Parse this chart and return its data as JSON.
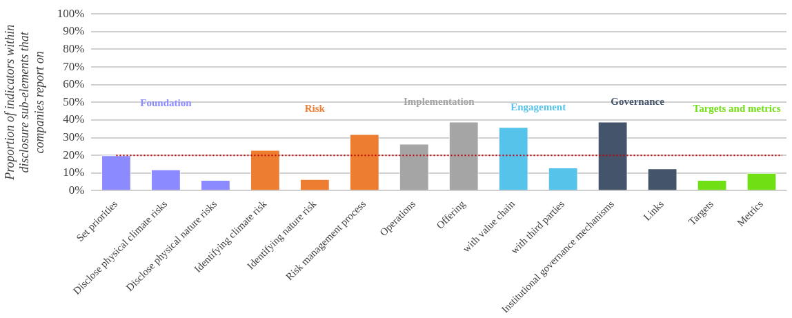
{
  "chart_data": {
    "type": "bar",
    "ylabel": "Proportion of indicators within disclosure sub-elements that companies report on",
    "categories": [
      "Set priorities",
      "Disclose physical climate risks",
      "Disclose physical nature risks",
      "Identifying climate risk",
      "Identifying nature risk",
      "Risk management process",
      "Operations",
      "Offering",
      "with value chain",
      "with third parties",
      "Institutional governance mechanisms",
      "Links",
      "Targets",
      "Metrics"
    ],
    "values": [
      20,
      12,
      6,
      23,
      6.5,
      32,
      26.5,
      39,
      36,
      13,
      39,
      12.5,
      6,
      10
    ],
    "colors": [
      "#8b8bff",
      "#8b8bff",
      "#8b8bff",
      "#ed7d31",
      "#ed7d31",
      "#ed7d31",
      "#a5a5a5",
      "#a5a5a5",
      "#56c3ea",
      "#56c3ea",
      "#44546a",
      "#44546a",
      "#70e014",
      "#70e014"
    ],
    "ylim": [
      0,
      100
    ],
    "yticks": [
      {
        "value": 0,
        "label": "0%"
      },
      {
        "value": 10,
        "label": "10%"
      },
      {
        "value": 20,
        "label": "20%"
      },
      {
        "value": 30,
        "label": "30%"
      },
      {
        "value": 40,
        "label": "40%"
      },
      {
        "value": 50,
        "label": "50%"
      },
      {
        "value": 60,
        "label": "60%"
      },
      {
        "value": 70,
        "label": "70%"
      },
      {
        "value": 80,
        "label": "80%"
      },
      {
        "value": 90,
        "label": "90%"
      },
      {
        "value": 100,
        "label": "100%"
      }
    ],
    "grid": "y",
    "legend": false,
    "ref_lines": [
      {
        "axis": "y",
        "value": 20,
        "color": "#c00000",
        "line_style": "dotted"
      }
    ],
    "annotations": [
      "Foundation",
      "Risk",
      "Implementation",
      "Engagement",
      "Governance",
      "Targets and metrics"
    ]
  }
}
